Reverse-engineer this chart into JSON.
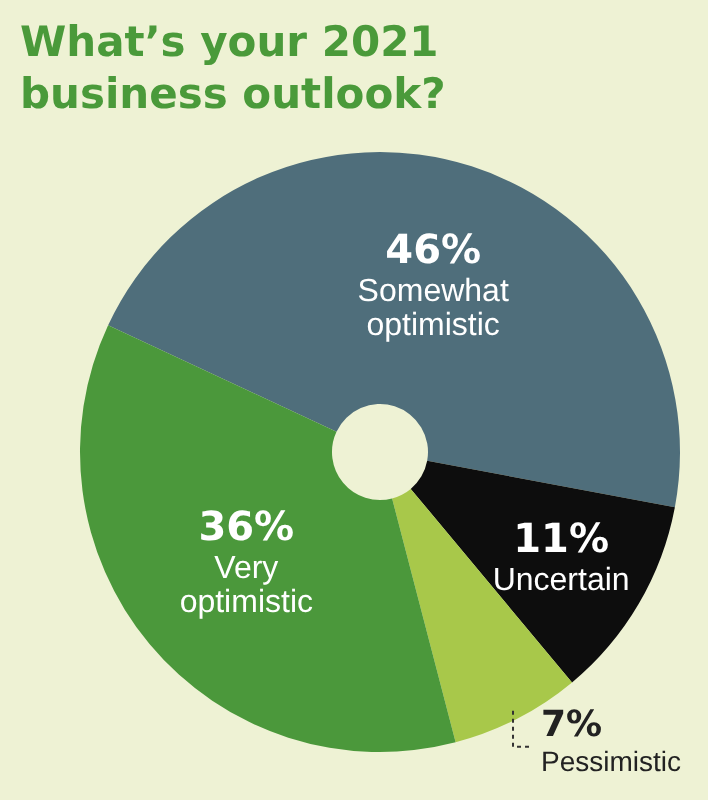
{
  "chart_data": {
    "type": "donut",
    "title": "What’s your 2021 business outlook?",
    "categories": [
      "Somewhat optimistic",
      "Uncertain",
      "Pessimistic",
      "Very optimistic"
    ],
    "values": [
      46,
      11,
      7,
      36
    ],
    "value_labels": [
      "46%",
      "11%",
      "7%",
      "36%"
    ],
    "colors": [
      "#4f6e7b",
      "#0d0d0d",
      "#a8c84a",
      "#4b983b"
    ],
    "legend": false
  }
}
